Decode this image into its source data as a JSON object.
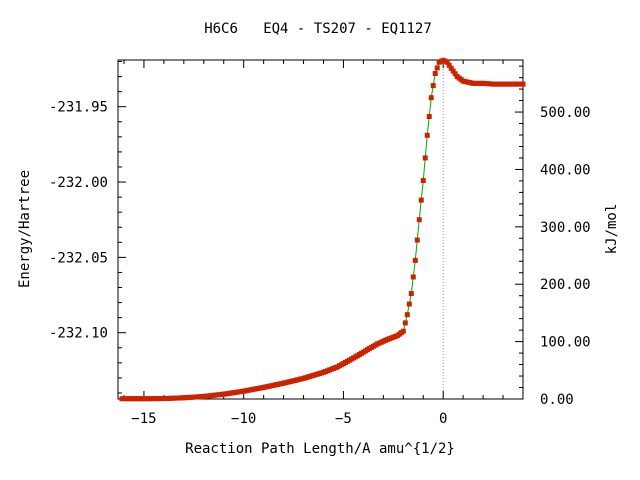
{
  "chart_data": {
    "type": "scatter",
    "title": "H6C6   EQ4 - TS207 - EQ1127",
    "xlabel": "Reaction Path Length/A amu^{1/2}",
    "ylabel": "Energy/Hartree",
    "y2label": "kJ/mol",
    "xlim": [
      -16.3,
      4.0
    ],
    "ylim": [
      -232.144,
      -231.919
    ],
    "y2lim": [
      0.0,
      590.7
    ],
    "x_ticks": [
      -15,
      -10,
      -5,
      0
    ],
    "x_tick_labels": [
      "−15",
      "−10",
      "−5",
      "0"
    ],
    "y_ticks": [
      -231.95,
      -232.0,
      -232.05,
      -232.1
    ],
    "y_tick_labels": [
      "-231.95",
      "-232.00",
      "-232.05",
      "-232.10"
    ],
    "y2_ticks": [
      500,
      400,
      300,
      200,
      100,
      0
    ],
    "y2_tick_labels": [
      "500.00",
      "400.00",
      "300.00",
      "200.00",
      "100.00",
      "0.00"
    ],
    "ts_marker_x": 0,
    "grid": false,
    "colors": {
      "points": "#cc2200",
      "line": "#00aa00",
      "ts_line": "#999999"
    },
    "series": [
      {
        "x": [
          -16.1,
          -15.0,
          -14.0,
          -13.0,
          -12.0,
          -11.0,
          -10.0,
          -9.0,
          -8.0,
          -7.0,
          -6.0,
          -5.3,
          -4.8,
          -4.3,
          -3.8,
          -3.3,
          -2.8,
          -2.3,
          -2.0,
          -1.8,
          -1.6,
          -1.4,
          -1.2,
          -1.0,
          -0.8,
          -0.6,
          -0.4,
          -0.2,
          0.0,
          0.2,
          0.4,
          0.7,
          1.0,
          1.5,
          2.0,
          2.5,
          3.0,
          3.5,
          4.0
        ],
        "y": [
          -232.1438,
          -232.1438,
          -232.1437,
          -232.1432,
          -232.1423,
          -232.1408,
          -232.1388,
          -232.1363,
          -232.1335,
          -232.1303,
          -232.1263,
          -232.1227,
          -232.119,
          -232.1153,
          -232.1113,
          -232.1075,
          -232.1045,
          -232.102,
          -232.099,
          -232.088,
          -232.074,
          -232.052,
          -232.025,
          -231.999,
          -231.969,
          -231.944,
          -231.928,
          -231.9205,
          -231.9192,
          -231.9205,
          -231.9245,
          -231.93,
          -231.933,
          -231.9345,
          -231.9345,
          -231.935,
          -231.935,
          -231.935,
          -231.935
        ]
      }
    ]
  }
}
